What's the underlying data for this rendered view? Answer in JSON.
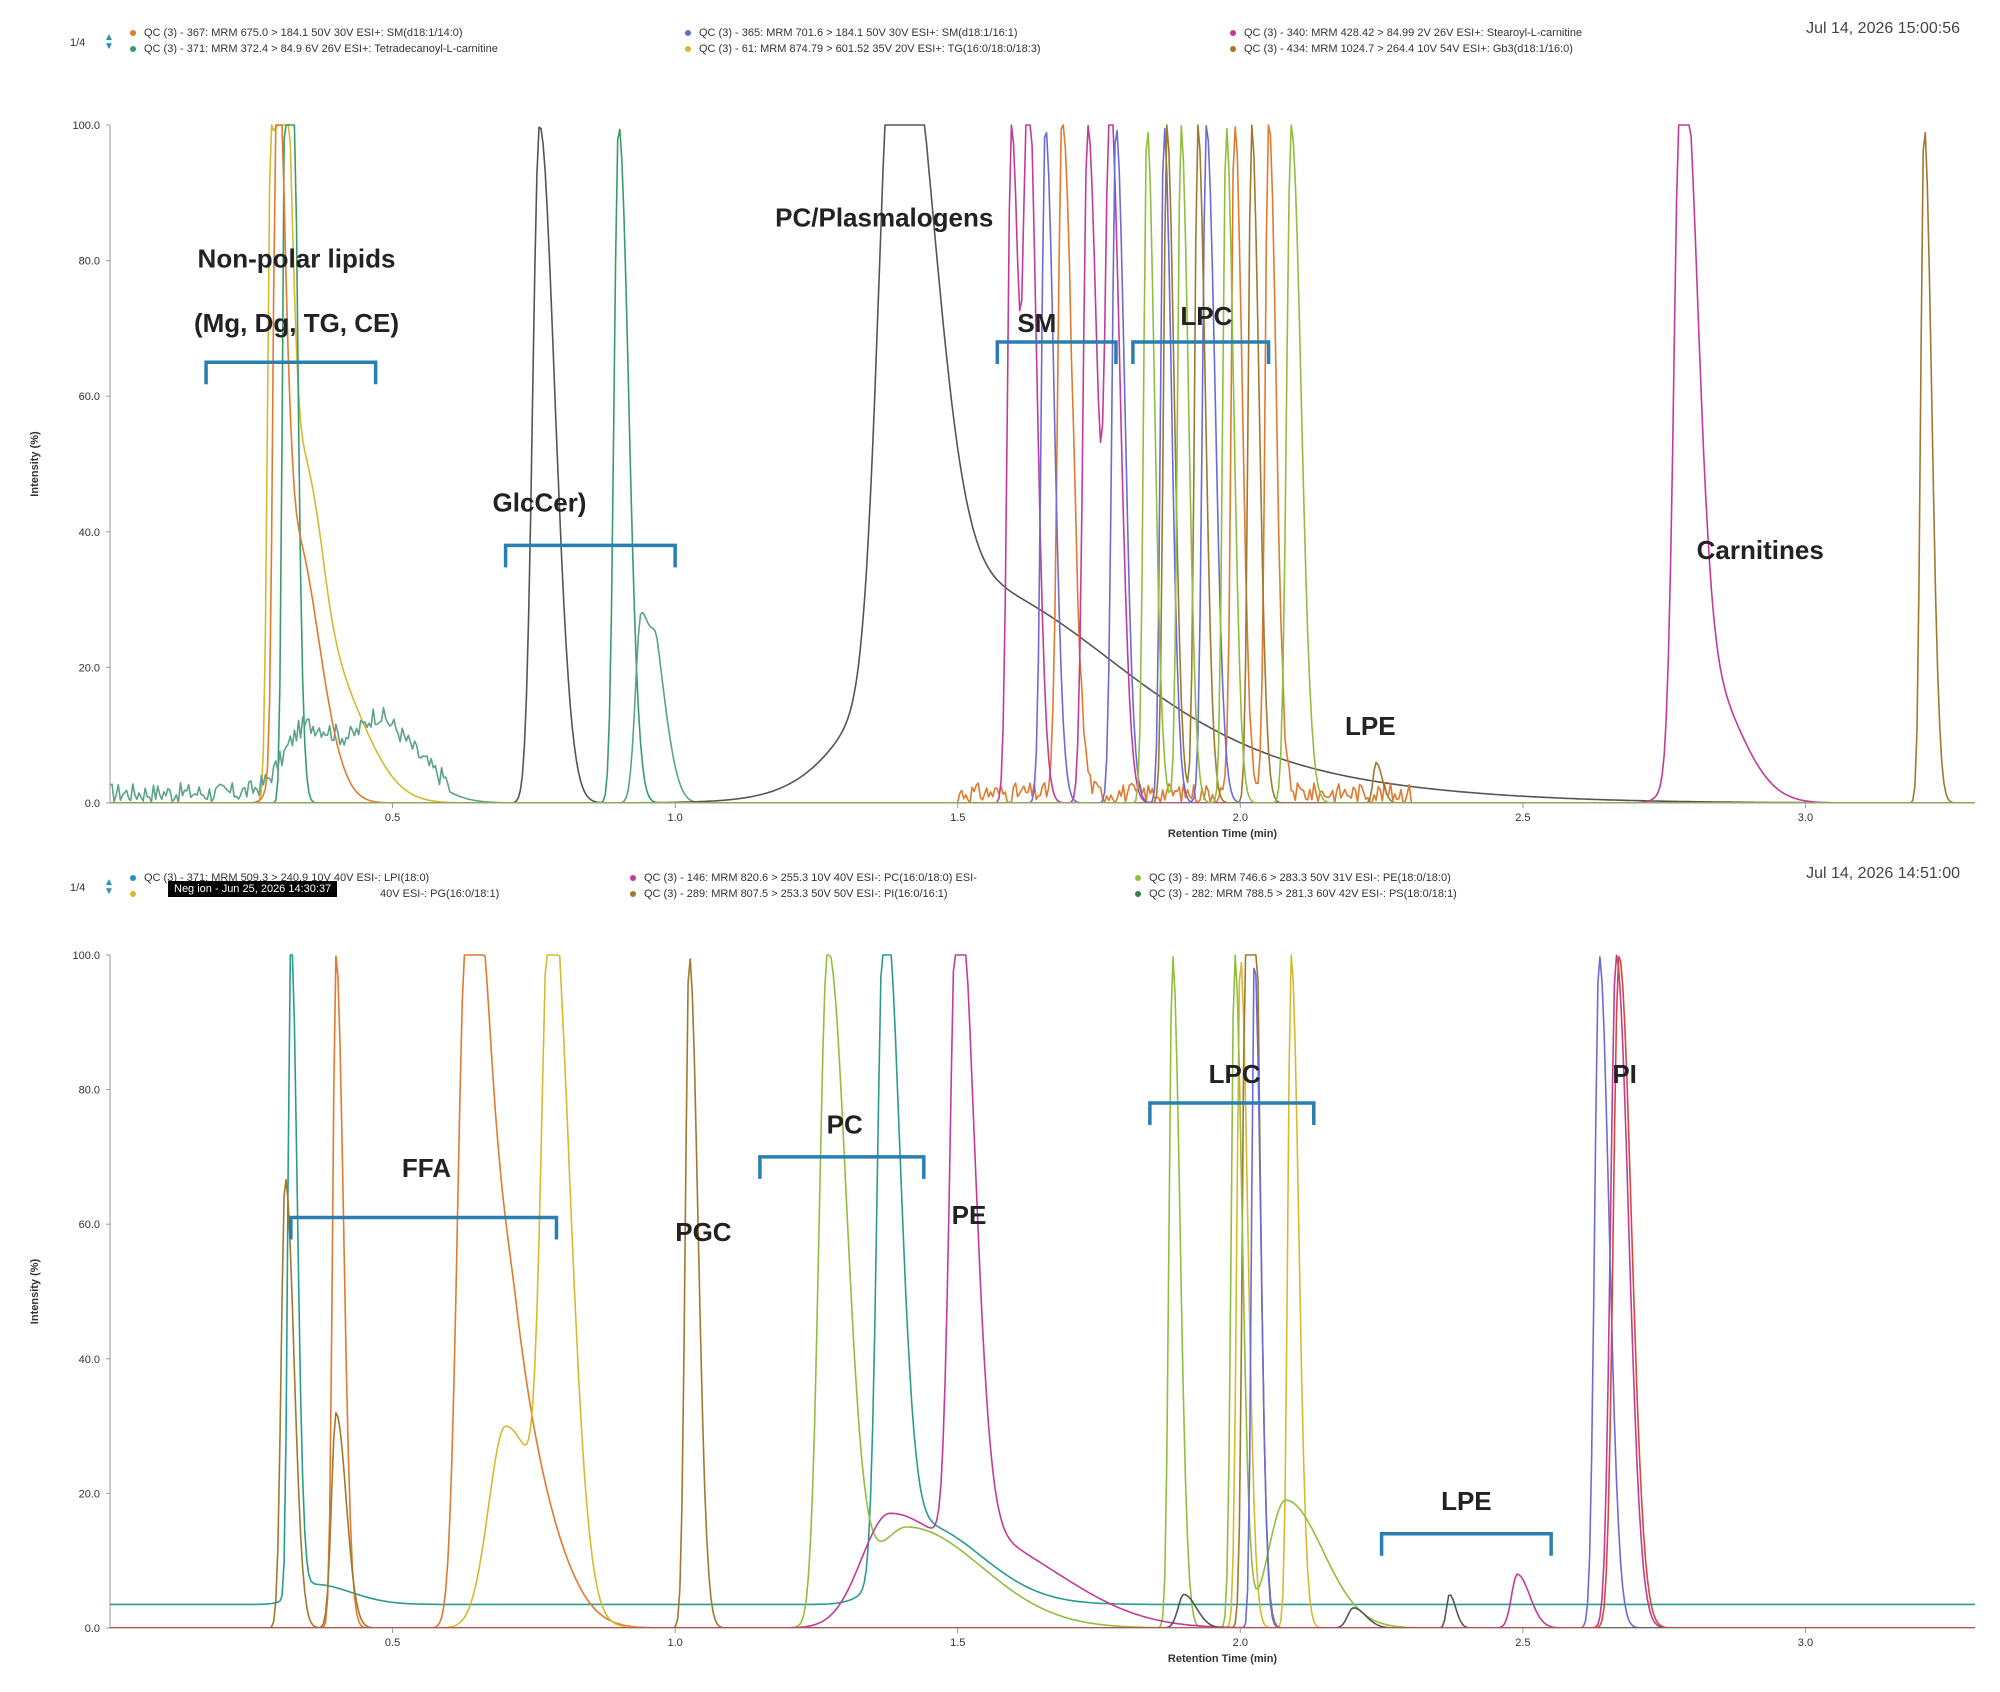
{
  "colors": {
    "bracket": "#2a7fb0",
    "axis": "#999999"
  },
  "chart_data": [
    {
      "type": "line",
      "id": "top",
      "page": "1/4",
      "timestamp": "Jul 14, 2026 15:00:56",
      "xlabel": "Retention Time (min)",
      "ylabel": "Intensity (%)",
      "xlim": [
        0.0,
        3.3
      ],
      "ylim": [
        0,
        100
      ],
      "xticks": [
        {
          "v": 0.5,
          "l": "0.5"
        },
        {
          "v": 1.0,
          "l": "1.0"
        },
        {
          "v": 1.5,
          "l": "1.5"
        },
        {
          "v": 2.0,
          "l": "2.0"
        },
        {
          "v": 2.5,
          "l": "2.5"
        },
        {
          "v": 3.0,
          "l": "3.0"
        }
      ],
      "yticks": [
        {
          "v": 0,
          "l": "0.0"
        },
        {
          "v": 20,
          "l": "20.0"
        },
        {
          "v": 40,
          "l": "40.0"
        },
        {
          "v": 60,
          "l": "60.0"
        },
        {
          "v": 80,
          "l": "80.0"
        },
        {
          "v": 100,
          "l": "100.0"
        }
      ],
      "legend": [
        {
          "text": "QC (3) - 367: MRM 675.0 > 184.1 50V 30V ESI+: SM(d18:1/14:0)",
          "color": "#e07a2e"
        },
        {
          "text": "QC (3) - 371: MRM 372.4 > 84.9 6V 26V ESI+: Tetradecanoyl-L-carnitine",
          "color": "#3a9b6a"
        },
        {
          "text": "QC (3) - 365: MRM 701.6 > 184.1 50V 30V ESI+: SM(d18:1/16:1)",
          "color": "#6b6bd6"
        },
        {
          "text": "QC (3) - 61: MRM 874.79 > 601.52 35V 20V ESI+: TG(16:0/18:0/18:3)",
          "color": "#d8b92e"
        },
        {
          "text": "QC (3) - 340: MRM 428.42 > 84.99 2V 26V ESI+: Stearoyl-L-carnitine",
          "color": "#c23b9a"
        },
        {
          "text": "QC (3) - 434: MRM 1024.7 > 264.4 10V 54V ESI+: Gb3(d18:1/16:0)",
          "color": "#a0782e"
        }
      ],
      "annotations": [
        {
          "text": "Non-polar lipids",
          "x": 0.33,
          "y": 79
        },
        {
          "text": "(Mg, Dg, TG, CE)",
          "x": 0.33,
          "y": 69.5
        },
        {
          "text": "GlcCer)",
          "x": 0.76,
          "y": 43
        },
        {
          "text": "PC/Plasmalogens",
          "x": 1.37,
          "y": 85
        },
        {
          "text": "SM",
          "x": 1.64,
          "y": 69.5
        },
        {
          "text": "LPC",
          "x": 1.94,
          "y": 70.5
        },
        {
          "text": "LPE",
          "x": 2.23,
          "y": 10
        },
        {
          "text": "Carnitines",
          "x": 2.92,
          "y": 36
        }
      ],
      "brackets": [
        {
          "x1": 0.17,
          "x2": 0.47,
          "y": 65
        },
        {
          "x1": 0.7,
          "x2": 1.0,
          "y": 38
        },
        {
          "x1": 1.57,
          "x2": 1.78,
          "y": 68
        },
        {
          "x1": 1.81,
          "x2": 2.05,
          "y": 68
        }
      ],
      "series": [
        {
          "color": "#d8b92e",
          "peaks": [
            [
              0.285,
              100,
              0.006
            ],
            [
              0.305,
              100,
              0.006
            ],
            [
              0.33,
              45,
              0.015
            ],
            [
              0.38,
              20,
              0.03
            ]
          ]
        },
        {
          "color": "#3a9b6a",
          "peaks": [
            [
              0.31,
              100,
              0.005
            ],
            [
              0.32,
              100,
              0.005
            ],
            [
              0.9,
              100,
              0.008
            ]
          ]
        },
        {
          "color": "#5aa38a",
          "peaks": [
            [
              0.35,
              10,
              0.04
            ],
            [
              0.48,
              8,
              0.03
            ],
            [
              0.94,
              28,
              0.01
            ],
            [
              0.97,
              12,
              0.01
            ]
          ],
          "noise": [
            0.0,
            0.6,
            3
          ]
        },
        {
          "color": "#555555",
          "peaks": [
            [
              0.76,
              100,
              0.012
            ],
            [
              0.8,
              3,
              0.01
            ],
            [
              1.39,
              100,
              0.028
            ],
            [
              1.48,
              25,
              0.12
            ],
            [
              1.6,
              8,
              0.2
            ]
          ]
        },
        {
          "color": "#e07a2e",
          "peaks": [
            [
              0.295,
              100,
              0.006
            ],
            [
              0.325,
              40,
              0.02
            ],
            [
              1.685,
              100,
              0.008
            ],
            [
              1.99,
              100,
              0.006
            ],
            [
              2.05,
              100,
              0.006
            ]
          ],
          "noise": [
            1.5,
            2.3,
            3
          ]
        },
        {
          "color": "#c23b9a",
          "peaks": [
            [
              1.595,
              100,
              0.007
            ],
            [
              1.625,
              100,
              0.007
            ],
            [
              1.73,
              100,
              0.008
            ],
            [
              1.77,
              100,
              0.008
            ],
            [
              2.78,
              100,
              0.012
            ],
            [
              2.81,
              20,
              0.03
            ]
          ]
        },
        {
          "color": "#6b6bd6",
          "peaks": [
            [
              1.655,
              100,
              0.007
            ],
            [
              1.78,
              100,
              0.007
            ],
            [
              1.865,
              100,
              0.006
            ],
            [
              1.94,
              100,
              0.007
            ]
          ]
        },
        {
          "color": "#a0782e",
          "peaks": [
            [
              1.87,
              100,
              0.006
            ],
            [
              1.925,
              100,
              0.006
            ],
            [
              2.02,
              100,
              0.006
            ],
            [
              2.24,
              6,
              0.005
            ],
            [
              3.21,
              100,
              0.006
            ]
          ]
        },
        {
          "color": "#8fbf3c",
          "peaks": [
            [
              1.835,
              100,
              0.006
            ],
            [
              1.895,
              100,
              0.006
            ],
            [
              1.975,
              100,
              0.006
            ],
            [
              2.09,
              100,
              0.008
            ]
          ]
        }
      ]
    },
    {
      "type": "line",
      "id": "bottom",
      "page": "1/4",
      "timestamp": "Jul 14, 2026 14:51:00",
      "badge": "Neg ion - Jun 25, 2026 14:30:37",
      "xlabel": "Retention Time (min)",
      "ylabel": "Intensity (%)",
      "xlim": [
        0.0,
        3.3
      ],
      "ylim": [
        0,
        100
      ],
      "xticks": [
        {
          "v": 0.5,
          "l": "0.5"
        },
        {
          "v": 1.0,
          "l": "1.0"
        },
        {
          "v": 1.5,
          "l": "1.5"
        },
        {
          "v": 2.0,
          "l": "2.0"
        },
        {
          "v": 2.5,
          "l": "2.5"
        },
        {
          "v": 3.0,
          "l": "3.0"
        }
      ],
      "yticks": [
        {
          "v": 0,
          "l": "0.0"
        },
        {
          "v": 20,
          "l": "20.0"
        },
        {
          "v": 40,
          "l": "40.0"
        },
        {
          "v": 60,
          "l": "60.0"
        },
        {
          "v": 80,
          "l": "80.0"
        },
        {
          "v": 100,
          "l": "100.0"
        }
      ],
      "legend": [
        {
          "text": "QC (3) - 371: MRM 509.3 > 240.9 10V 40V ESI-: LPI(18:0)",
          "color": "#2a8fbd"
        },
        {
          "text": "",
          "color": "#d8b92e"
        },
        {
          "text": "40V ESI-: PG(16:0/18:1)",
          "color": "#d8b92e"
        },
        {
          "text": "QC (3) - 146: MRM 820.6 > 255.3 10V 40V ESI-: PC(16:0/18:0) ESI-",
          "color": "#c23b9a"
        },
        {
          "text": "QC (3) - 289: MRM 807.5 > 253.3 50V 50V ESI-: PI(16:0/16:1)",
          "color": "#a0782e"
        },
        {
          "text": "QC (3) - 89: MRM 746.6 > 283.3 50V 31V ESI-: PE(18:0/18:0)",
          "color": "#8fbf3c"
        },
        {
          "text": "QC (3) - 282: MRM 788.5 > 281.3 60V 42V ESI-: PS(18:0/18:1)",
          "color": "#3a7a5a"
        }
      ],
      "annotations": [
        {
          "text": "FFA",
          "x": 0.56,
          "y": 67
        },
        {
          "text": "PGC",
          "x": 1.05,
          "y": 57.5
        },
        {
          "text": "PC",
          "x": 1.3,
          "y": 73.5
        },
        {
          "text": "PE",
          "x": 1.52,
          "y": 60
        },
        {
          "text": "LPC",
          "x": 1.99,
          "y": 81
        },
        {
          "text": "PI",
          "x": 2.68,
          "y": 81
        },
        {
          "text": "LPE",
          "x": 2.4,
          "y": 17.5
        }
      ],
      "brackets": [
        {
          "x1": 0.32,
          "x2": 0.79,
          "y": 61
        },
        {
          "x1": 1.15,
          "x2": 1.44,
          "y": 70
        },
        {
          "x1": 1.84,
          "x2": 2.13,
          "y": 78
        },
        {
          "x1": 2.25,
          "x2": 2.55,
          "y": 14
        }
      ],
      "series": [
        {
          "color": "#2a9b8f",
          "peaks": [
            [
              0.32,
              100,
              0.005
            ],
            [
              0.36,
              3,
              0.03
            ],
            [
              1.37,
              100,
              0.012
            ],
            [
              1.43,
              12,
              0.05
            ]
          ],
          "base": 3.5
        },
        {
          "color": "#e07a2e",
          "peaks": [
            [
              0.4,
              100,
              0.006
            ],
            [
              0.63,
              100,
              0.015
            ],
            [
              0.67,
              38,
              0.02
            ],
            [
              0.72,
              25,
              0.03
            ]
          ]
        },
        {
          "color": "#d8b92e",
          "peaks": [
            [
              0.78,
              100,
              0.015
            ],
            [
              0.7,
              30,
              0.03
            ],
            [
              2.0,
              100,
              0.006
            ],
            [
              2.09,
              100,
              0.006
            ]
          ]
        },
        {
          "color": "#a0782e",
          "peaks": [
            [
              0.31,
              67,
              0.007
            ],
            [
              0.4,
              32,
              0.008
            ],
            [
              1.025,
              100,
              0.007
            ],
            [
              2.01,
              100,
              0.006
            ],
            [
              2.02,
              100,
              0.006
            ]
          ]
        },
        {
          "color": "#8fbf3c",
          "peaks": [
            [
              1.27,
              100,
              0.015
            ],
            [
              1.41,
              15,
              0.06
            ],
            [
              1.88,
              100,
              0.006
            ],
            [
              1.99,
              100,
              0.006
            ],
            [
              2.08,
              19,
              0.03
            ]
          ]
        },
        {
          "color": "#c23b9a",
          "peaks": [
            [
              1.5,
              100,
              0.013
            ],
            [
              1.38,
              17,
              0.05
            ],
            [
              1.58,
              10,
              0.06
            ],
            [
              2.49,
              8,
              0.01
            ],
            [
              2.665,
              100,
              0.01
            ]
          ]
        },
        {
          "color": "#6b6bd6",
          "peaks": [
            [
              2.025,
              100,
              0.005
            ],
            [
              2.635,
              100,
              0.008
            ]
          ]
        },
        {
          "color": "#555555",
          "peaks": [
            [
              1.9,
              5,
              0.01
            ],
            [
              2.2,
              3,
              0.01
            ],
            [
              2.37,
              5,
              0.005
            ]
          ]
        },
        {
          "color": "#d9473a",
          "peaks": [
            [
              2.67,
              100,
              0.01
            ]
          ]
        }
      ]
    }
  ]
}
